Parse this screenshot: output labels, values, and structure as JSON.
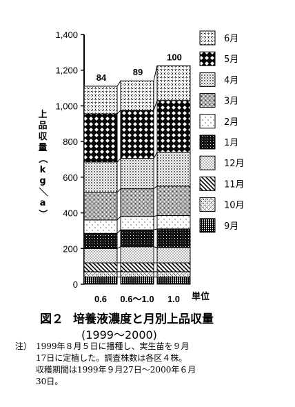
{
  "chart_data": {
    "type": "bar",
    "stacked": true,
    "categories": [
      "0.6",
      "0.6〜1.0",
      "1.0"
    ],
    "category_unit_label": "単位",
    "ylabel": "上品収量（kg／a）",
    "ylim": [
      0,
      1400
    ],
    "yticks": [
      "0",
      "200",
      "400",
      "600",
      "800",
      "1,000",
      "1,200",
      "1,400"
    ],
    "bar_top_labels": [
      "84",
      "89",
      "100"
    ],
    "series": [
      {
        "name": "9月",
        "values": [
          40,
          40,
          40
        ]
      },
      {
        "name": "10月",
        "values": [
          30,
          30,
          30
        ]
      },
      {
        "name": "11月",
        "values": [
          50,
          50,
          50
        ]
      },
      {
        "name": "12月",
        "values": [
          80,
          90,
          85
        ]
      },
      {
        "name": "1月",
        "values": [
          85,
          95,
          105
        ]
      },
      {
        "name": "2月",
        "values": [
          75,
          75,
          75
        ]
      },
      {
        "name": "3月",
        "values": [
          155,
          155,
          165
        ]
      },
      {
        "name": "4月",
        "values": [
          170,
          170,
          190
        ]
      },
      {
        "name": "5月",
        "values": [
          270,
          270,
          290
        ]
      },
      {
        "name": "6月",
        "values": [
          155,
          165,
          195
        ]
      }
    ],
    "legend_order": [
      "6月",
      "5月",
      "4月",
      "3月",
      "2月",
      "1月",
      "12月",
      "11月",
      "10月",
      "9月"
    ],
    "legend_placement": "right",
    "grid": false,
    "colors": {
      "ink": "#000000",
      "background": "#ffffff"
    }
  },
  "caption": {
    "figure_number": "図２",
    "title": "培養液濃度と月別上品収量",
    "subtitle": "(1999〜2000)"
  },
  "note": {
    "label": "注）",
    "text": "1999年８月５日に播種し、実生苗を９月\n17日に定植した。調査株数は各区４株。\n収穫期間は1999年９月27日〜2000年６月\n30日。"
  }
}
